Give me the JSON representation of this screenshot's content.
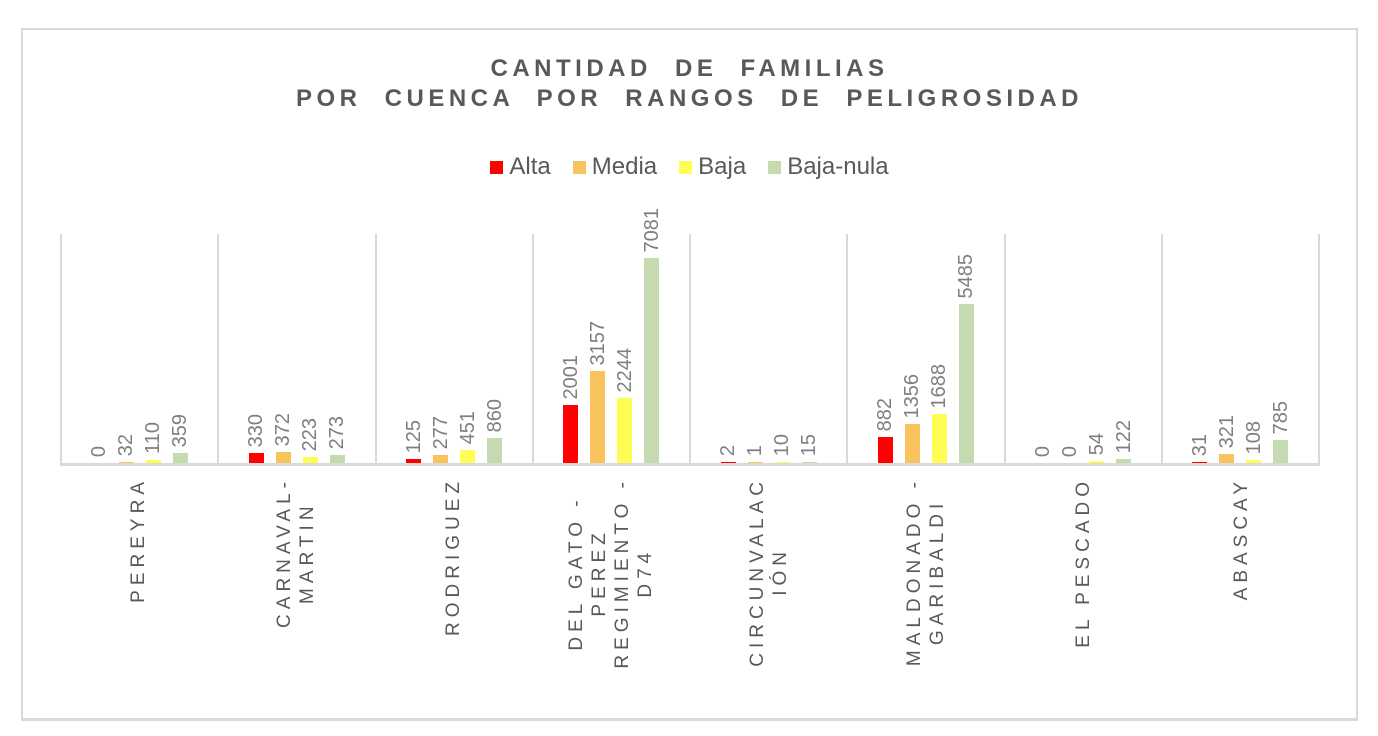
{
  "chart_data": {
    "type": "bar",
    "title_line1": "CANTIDAD DE FAMILIAS",
    "title_line2": "POR CUENCA POR RANGOS DE PELIGROSIDAD",
    "title": "CANTIDAD DE FAMILIAS POR CUENCA POR RANGOS DE PELIGROSIDAD",
    "xlabel": "",
    "ylabel": "",
    "ylim": [
      0,
      8000
    ],
    "grid": "vertical category separators only, no y-axis tick labels",
    "legend_position": "top-center",
    "categories": [
      "PEREYRA",
      "CARNAVAL-MARTIN",
      "RODRIGUEZ",
      "DEL GATO - PEREZ REGIMIENTO - D74",
      "CIRCUNVALACIÓN",
      "MALDONADO - GARIBALDI",
      "EL PESCADO",
      "ABASCAY"
    ],
    "category_label_lines": [
      [
        "PEREYRA"
      ],
      [
        "CARNAVAL-",
        "MARTIN"
      ],
      [
        "RODRIGUEZ"
      ],
      [
        "DEL GATO -",
        "PEREZ",
        "REGIMIENTO -",
        "D74"
      ],
      [
        "CIRCUNVALAC",
        "IÓN"
      ],
      [
        "MALDONADO -",
        "GARIBALDI"
      ],
      [
        "EL PESCADO"
      ],
      [
        "ABASCAY"
      ]
    ],
    "series": [
      {
        "name": "Alta",
        "color": "#FF0000",
        "values": [
          0,
          330,
          125,
          2001,
          2,
          882,
          0,
          31
        ]
      },
      {
        "name": "Media",
        "color": "#F8C25C",
        "values": [
          32,
          372,
          277,
          3157,
          1,
          1356,
          0,
          321
        ]
      },
      {
        "name": "Baja",
        "color": "#FDFD54",
        "values": [
          110,
          223,
          451,
          2244,
          10,
          1688,
          54,
          108
        ]
      },
      {
        "name": "Baja-nula",
        "color": "#C5DAAE",
        "values": [
          359,
          273,
          860,
          7081,
          15,
          5485,
          122,
          785
        ]
      }
    ]
  },
  "colors": {
    "title_text": "#595959",
    "legend_text": "#595959",
    "data_label_text": "#7F7F7F",
    "category_label_text": "#595959",
    "gridline": "#D9D9D9",
    "frame_border": "#D9D9D9",
    "background": "#FFFFFF"
  }
}
